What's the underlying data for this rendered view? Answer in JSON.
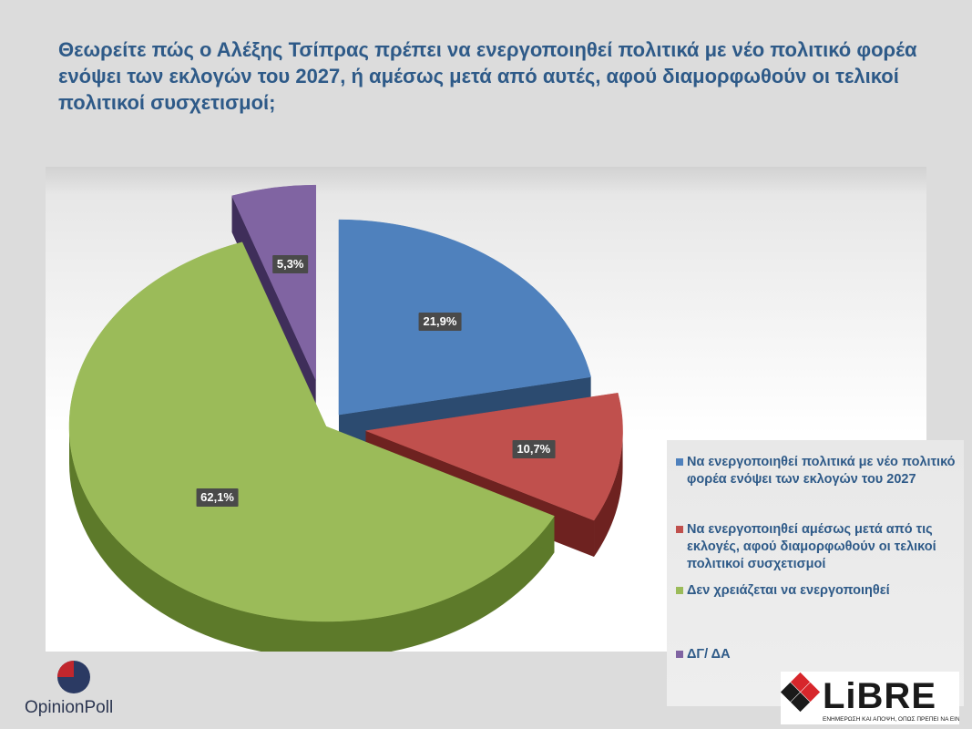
{
  "header": {
    "question": "Θεωρείτε πώς ο Αλέξης Τσίπρας πρέπει να ενεργοποιηθεί πολιτικά με νέο πολιτικό φορέα ενόψει των εκλογών του 2027, ή αμέσως μετά από αυτές, αφού διαμορφωθούν οι τελικοί πολιτικοί συσχετισμοί;"
  },
  "chart_data": {
    "type": "pie",
    "style": "3d-exploded",
    "legend_position": "right",
    "slices": [
      {
        "label": "Να ενεργοποιηθεί πολιτικά με νέο πολιτικό φορέα ενόψει των εκλογών του 2027",
        "value": 21.9,
        "display": "21,9%",
        "color": "#4f81bd",
        "side_color": "#2c4b70"
      },
      {
        "label": "Να ενεργοποιηθεί αμέσως μετά από τις εκλογές, αφού διαμορφωθούν οι τελικοί πολιτικοί συσχετισμοί",
        "value": 10.7,
        "display": "10,7%",
        "color": "#c0504d",
        "side_color": "#6e2220"
      },
      {
        "label": "Δεν χρειάζεται να ενεργοποιηθεί",
        "value": 62.1,
        "display": "62,1%",
        "color": "#9bbb59",
        "side_color": "#5d7a2a"
      },
      {
        "label": "ΔΓ/ ΔΑ",
        "value": 5.3,
        "display": "5,3%",
        "color": "#8064a2",
        "side_color": "#3f2e5a"
      }
    ]
  },
  "branding": {
    "opinion_poll": "OpinionPoll",
    "libre_name": "LiBRE",
    "libre_tagline": "ΕΝΗΜΕΡΩΣΗ ΚΑΙ ΑΠΟΨΗ, ΟΠΩΣ ΠΡΕΠΕΙ ΝΑ ΕΙΝΑΙ..."
  }
}
